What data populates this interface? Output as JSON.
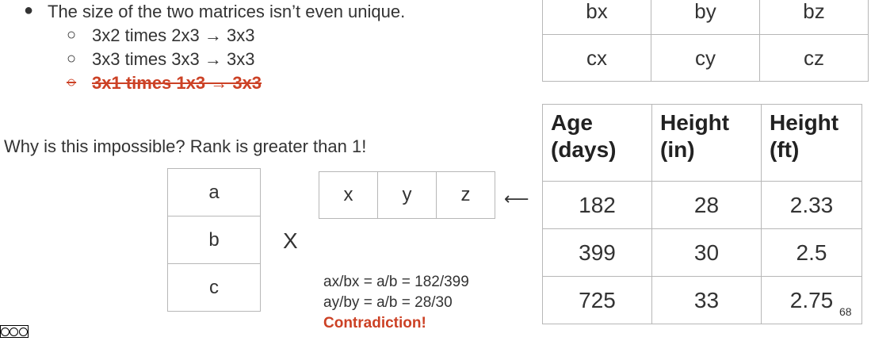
{
  "bullets": {
    "main": "The size of the two matrices isn’t even unique.",
    "main_marker": "●",
    "sub_marker": "○",
    "sub1": "3x2 times 2x3 → 3x3",
    "sub2": "3x3 times 3x3 → 3x3",
    "sub3_struck": "3x1 times 1x3 → 3x3"
  },
  "top_table": {
    "rows": [
      [
        "bx",
        "by",
        "bz"
      ],
      [
        "cx",
        "cy",
        "cz"
      ]
    ]
  },
  "why_text": "Why is this impossible? Rank is greater than 1!",
  "column_vector": [
    "a",
    "b",
    "c"
  ],
  "times_symbol": "X",
  "row_vector": [
    "x",
    "y",
    "z"
  ],
  "arrow": "⟵",
  "equations": [
    "ax/bx = a/b = 182/399",
    "ay/by = a/b = 28/30"
  ],
  "contradiction": "Contradiction!",
  "data_table": {
    "headers": [
      "Age\n(days)",
      "Height\n(in)",
      "Height\n(ft)"
    ],
    "rows": [
      [
        "182",
        "28",
        "2.33"
      ],
      [
        "399",
        "30",
        "2.5"
      ],
      [
        "725",
        "33",
        "2.75"
      ]
    ]
  },
  "page_number": "68",
  "colors": {
    "accent_red": "#cc4125",
    "text": "#333333",
    "border": "#b7b7b7"
  }
}
